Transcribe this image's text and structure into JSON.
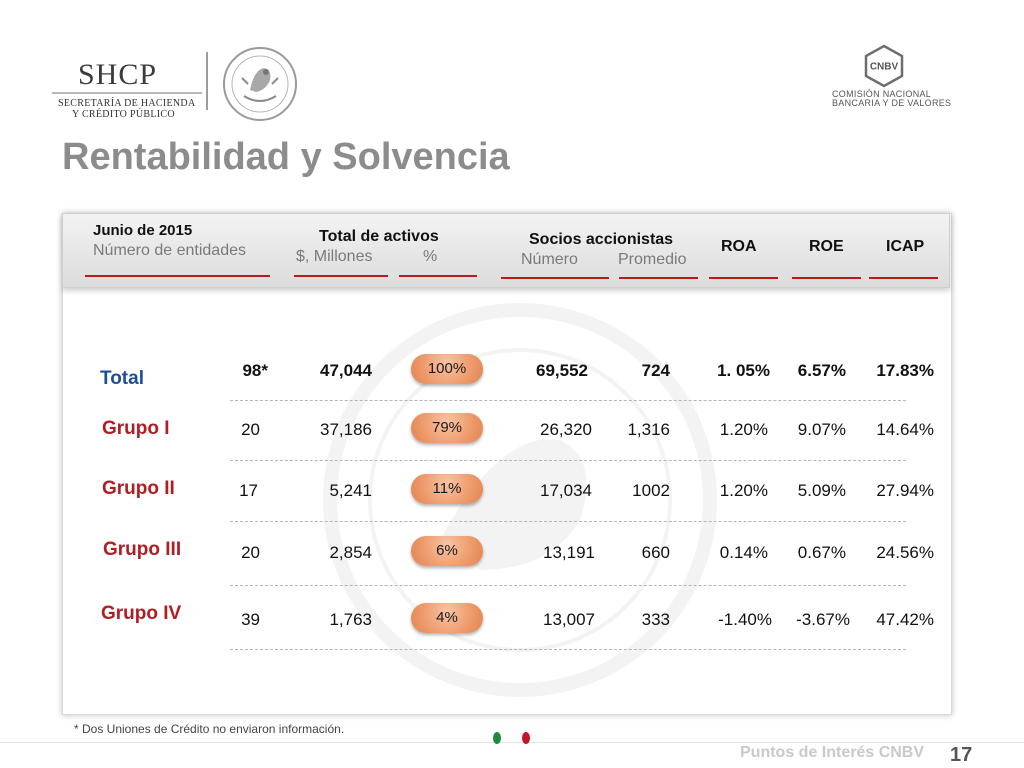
{
  "header": {
    "shcp_title": "SHCP",
    "shcp_subtitle_1": "SECRETARÍA DE HACIENDA",
    "shcp_subtitle_2": "Y CRÉDITO PÚBLICO",
    "seal_icon": "mexican-coat-of-arms-seal",
    "cnbv_logo_text": "CNBV",
    "cnbv_line_1": "COMISIÓN NACIONAL",
    "cnbv_line_2": "BANCARIA Y DE VALORES"
  },
  "page_title": "Rentabilidad y Solvencia",
  "table": {
    "columns": {
      "date": "Junio de 2015",
      "entities": "Número de entidades",
      "assets_group": "Total de activos",
      "assets_amount": "$, Millones",
      "assets_pct": "%",
      "partners_group": "Socios accionistas",
      "partners_number": "Número",
      "partners_avg": "Promedio",
      "roa": "ROA",
      "roe": "ROE",
      "icap": "ICAP"
    },
    "rows": [
      {
        "label": "Total",
        "entities": "98*",
        "assets": "47,044",
        "pct": "100%",
        "partners": "69,552",
        "avg": "724",
        "roa": "1. 05%",
        "roe": "6.57%",
        "icap": "17.83%"
      },
      {
        "label": "Grupo I",
        "entities": "20",
        "assets": "37,186",
        "pct": "79%",
        "partners": "26,320",
        "avg": "1,316",
        "roa": "1.20%",
        "roe": "9.07%",
        "icap": "14.64%"
      },
      {
        "label": "Grupo II",
        "entities": "17",
        "assets": "5,241",
        "pct": "11%",
        "partners": "17,034",
        "avg": "1002",
        "roa": "1.20%",
        "roe": "5.09%",
        "icap": "27.94%"
      },
      {
        "label": "Grupo III",
        "entities": "20",
        "assets": "2,854",
        "pct": "6%",
        "partners": "13,191",
        "avg": "660",
        "roa": "0.14%",
        "roe": "0.67%",
        "icap": "24.56%"
      },
      {
        "label": "Grupo IV",
        "entities": "39",
        "assets": "1,763",
        "pct": "4%",
        "partners": "13,007",
        "avg": "333",
        "roa": "-1.40%",
        "roe": "-3.67%",
        "icap": "47.42%"
      }
    ]
  },
  "footnote": "* Dos Uniones de Crédito no enviaron información.",
  "footer": {
    "brand": "Puntos de Interés CNBV",
    "page_number": "17",
    "colors": {
      "green": "#1e8a3c",
      "red": "#c0182a"
    }
  }
}
